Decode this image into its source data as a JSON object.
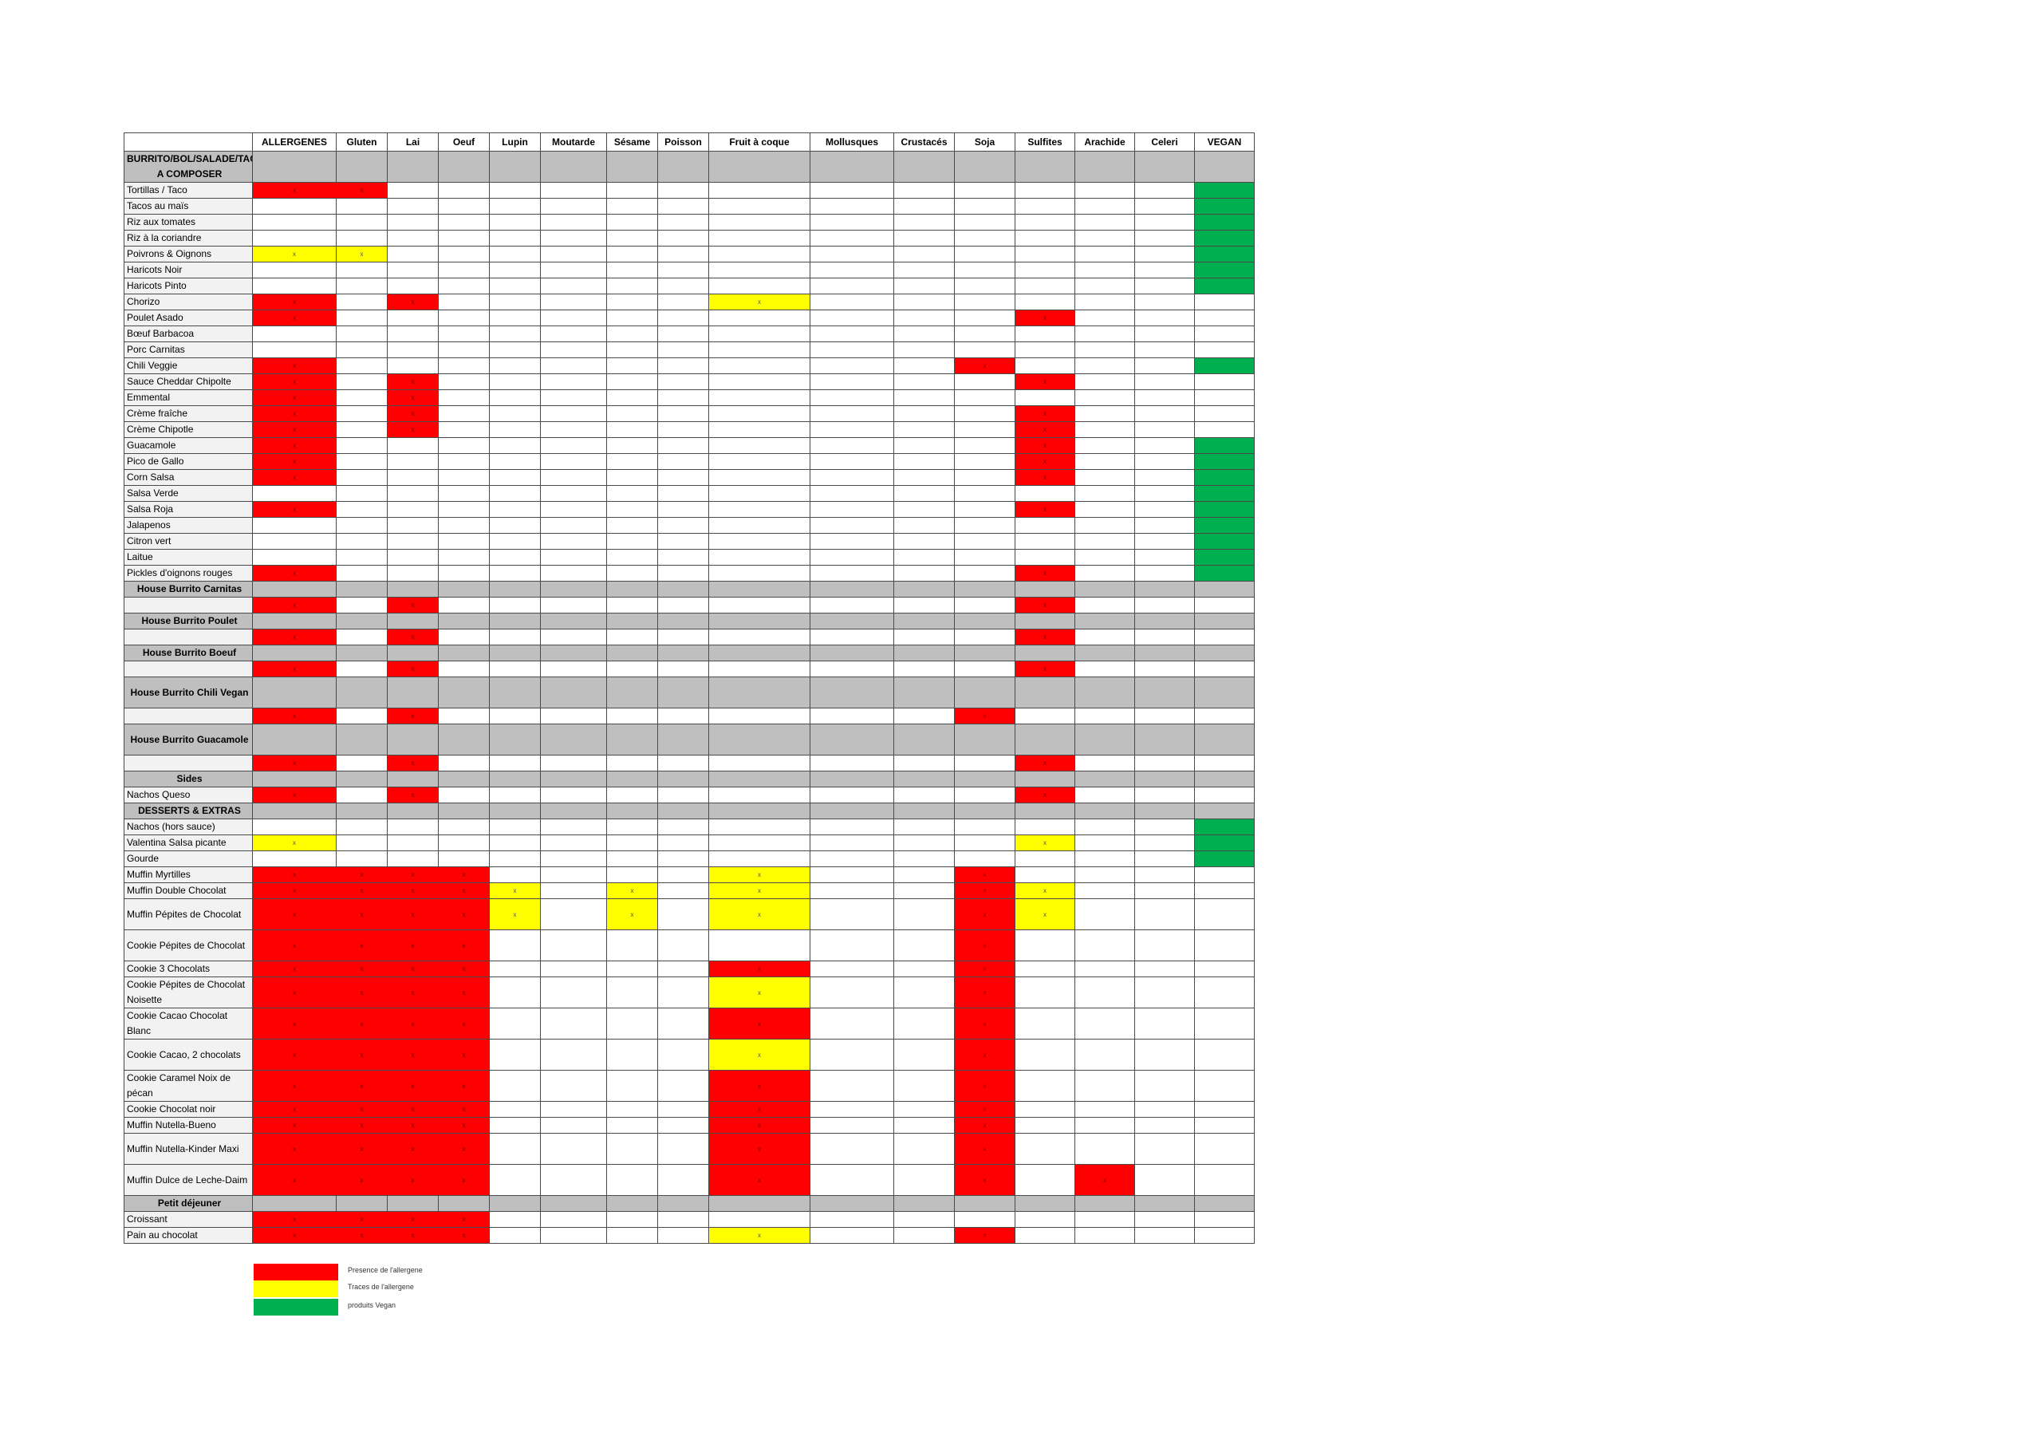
{
  "headers": [
    "",
    "ALLERGENES",
    "Gluten",
    "Lai",
    "Oeuf",
    "Lupin",
    "Moutarde",
    "Sésame",
    "Poisson",
    "Fruit à coque",
    "Mollusques",
    "Crustacés",
    "Soja",
    "Sulfites",
    "Arachide",
    "Celeri",
    "VEGAN"
  ],
  "mark": "x",
  "colors": {
    "presence": "#ff0000",
    "traces": "#ffff00",
    "vegan": "#00b050",
    "section": "#bfbfbf"
  },
  "rows": [
    {
      "kind": "section",
      "name": "BURRITO/BOL/SALADE/TACOS A COMPOSER",
      "tall": true,
      "align": "center",
      "cells": {}
    },
    {
      "kind": "item",
      "name": "Tortillas / Taco",
      "cells": {
        "1": "r",
        "2": "r",
        "16": "g"
      }
    },
    {
      "kind": "item",
      "name": "Tacos au maïs",
      "cells": {
        "16": "g"
      }
    },
    {
      "kind": "item",
      "name": "Riz aux tomates",
      "cells": {
        "16": "g"
      }
    },
    {
      "kind": "item",
      "name": "Riz à la coriandre",
      "cells": {
        "16": "g"
      }
    },
    {
      "kind": "item",
      "name": "Poivrons & Oignons",
      "cells": {
        "1": "y",
        "2": "y",
        "16": "g"
      }
    },
    {
      "kind": "item",
      "name": "Haricots Noir",
      "cells": {
        "16": "g"
      }
    },
    {
      "kind": "item",
      "name": "Haricots Pinto",
      "cells": {
        "16": "g"
      }
    },
    {
      "kind": "item",
      "name": "Chorizo",
      "cells": {
        "1": "r",
        "3": "r",
        "9": "y"
      }
    },
    {
      "kind": "item",
      "name": "Poulet Asado",
      "cells": {
        "1": "r",
        "13": "r"
      }
    },
    {
      "kind": "item",
      "name": "Bœuf Barbacoa",
      "cells": {}
    },
    {
      "kind": "item",
      "name": "Porc Carnitas",
      "cells": {}
    },
    {
      "kind": "item",
      "name": "Chili Veggie",
      "cells": {
        "1": "r",
        "12": "r",
        "16": "g"
      }
    },
    {
      "kind": "item",
      "name": "Sauce Cheddar Chipolte",
      "cells": {
        "1": "r",
        "3": "r",
        "13": "r"
      }
    },
    {
      "kind": "item",
      "name": "Emmental",
      "cells": {
        "1": "r",
        "3": "r"
      }
    },
    {
      "kind": "item",
      "name": "Crème fraîche",
      "cells": {
        "1": "r",
        "3": "r",
        "13": "r"
      }
    },
    {
      "kind": "item",
      "name": "Crème Chipotle",
      "cells": {
        "1": "r",
        "3": "r",
        "13": "r"
      }
    },
    {
      "kind": "item",
      "name": "Guacamole",
      "cells": {
        "1": "r",
        "13": "r",
        "16": "g"
      }
    },
    {
      "kind": "item",
      "name": "Pico de Gallo",
      "cells": {
        "1": "r",
        "13": "r",
        "16": "g"
      }
    },
    {
      "kind": "item",
      "name": "Corn Salsa",
      "cells": {
        "1": "r",
        "13": "r",
        "16": "g"
      }
    },
    {
      "kind": "item",
      "name": "Salsa Verde",
      "cells": {
        "16": "g"
      }
    },
    {
      "kind": "item",
      "name": "Salsa Roja",
      "cells": {
        "1": "r",
        "13": "r",
        "16": "g"
      }
    },
    {
      "kind": "item",
      "name": "Jalapenos",
      "cells": {
        "16": "g"
      }
    },
    {
      "kind": "item",
      "name": "Citron vert",
      "cells": {
        "16": "g"
      }
    },
    {
      "kind": "item",
      "name": "Laitue",
      "cells": {
        "16": "g"
      }
    },
    {
      "kind": "item",
      "name": "Pickles d'oignons rouges",
      "cells": {
        "1": "r",
        "13": "r",
        "16": "g"
      }
    },
    {
      "kind": "section",
      "name": "House Burrito Carnitas",
      "cells": {}
    },
    {
      "kind": "blank",
      "name": "",
      "cells": {
        "1": "r",
        "3": "r",
        "13": "r"
      }
    },
    {
      "kind": "section",
      "name": "House Burrito Poulet",
      "cells": {}
    },
    {
      "kind": "blank",
      "name": "",
      "cells": {
        "1": "r",
        "3": "r",
        "13": "r"
      }
    },
    {
      "kind": "section",
      "name": "House Burrito Boeuf",
      "cells": {}
    },
    {
      "kind": "blank",
      "name": "",
      "cells": {
        "1": "r",
        "3": "r",
        "13": "r"
      }
    },
    {
      "kind": "section",
      "name": "House Burrito Chili Vegan",
      "tall": true,
      "cells": {}
    },
    {
      "kind": "blank",
      "name": "",
      "cells": {
        "1": "r",
        "3": "r",
        "12": "r"
      }
    },
    {
      "kind": "section",
      "name": "House Burrito Guacamole",
      "tall": true,
      "cells": {}
    },
    {
      "kind": "blank",
      "name": "",
      "cells": {
        "1": "r",
        "3": "r",
        "13": "r"
      }
    },
    {
      "kind": "section",
      "name": "Sides",
      "cells": {}
    },
    {
      "kind": "item",
      "name": "Nachos Queso",
      "cells": {
        "1": "r",
        "3": "r",
        "13": "r"
      }
    },
    {
      "kind": "section",
      "name": "DESSERTS & EXTRAS",
      "cells": {}
    },
    {
      "kind": "item",
      "name": "Nachos (hors sauce)",
      "cells": {
        "16": "g"
      }
    },
    {
      "kind": "item",
      "name": "Valentina Salsa picante",
      "cells": {
        "1": "y",
        "13": "y",
        "16": "g"
      }
    },
    {
      "kind": "item",
      "name": "Gourde",
      "cells": {
        "16": "g"
      }
    },
    {
      "kind": "item",
      "name": "Muffin Myrtilles",
      "cells": {
        "1": "r",
        "2": "r",
        "3": "r",
        "4": "r",
        "9": "y",
        "12": "r"
      }
    },
    {
      "kind": "item",
      "name": "Muffin Double Chocolat",
      "cells": {
        "1": "r",
        "2": "r",
        "3": "r",
        "4": "r",
        "5": "y",
        "7": "y",
        "9": "y",
        "12": "r",
        "13": "y"
      }
    },
    {
      "kind": "item",
      "name": "Muffin Pépites de Chocolat",
      "tall": true,
      "cells": {
        "1": "r",
        "2": "r",
        "3": "r",
        "4": "r",
        "5": "y",
        "7": "y",
        "9": "y",
        "12": "r",
        "13": "y"
      }
    },
    {
      "kind": "item",
      "name": "Cookie Pépites de Chocolat",
      "tall": true,
      "cells": {
        "1": "r",
        "2": "r",
        "3": "r",
        "4": "r",
        "12": "r"
      }
    },
    {
      "kind": "item",
      "name": "Cookie 3 Chocolats",
      "cells": {
        "1": "r",
        "2": "r",
        "3": "r",
        "4": "r",
        "9": "r",
        "12": "r"
      }
    },
    {
      "kind": "item",
      "name": "Cookie Pépites de Chocolat Noisette",
      "tall": true,
      "cells": {
        "1": "r",
        "2": "r",
        "3": "r",
        "4": "r",
        "9": "y",
        "12": "r"
      }
    },
    {
      "kind": "item",
      "name": "Cookie Cacao Chocolat Blanc",
      "tall": true,
      "cells": {
        "1": "r",
        "2": "r",
        "3": "r",
        "4": "r",
        "9": "r",
        "12": "r"
      }
    },
    {
      "kind": "item",
      "name": "Cookie Cacao, 2 chocolats",
      "tall": true,
      "cells": {
        "1": "r",
        "2": "r",
        "3": "r",
        "4": "r",
        "9": "y",
        "12": "r"
      }
    },
    {
      "kind": "item",
      "name": "Cookie Caramel Noix de pécan",
      "tall": true,
      "cells": {
        "1": "r",
        "2": "r",
        "3": "r",
        "4": "r",
        "9": "r",
        "12": "r"
      }
    },
    {
      "kind": "item",
      "name": "Cookie Chocolat noir",
      "cells": {
        "1": "r",
        "2": "r",
        "3": "r",
        "4": "r",
        "9": "r",
        "12": "r"
      }
    },
    {
      "kind": "item",
      "name": "Muffin Nutella-Bueno",
      "cells": {
        "1": "r",
        "2": "r",
        "3": "r",
        "4": "r",
        "9": "r",
        "12": "r"
      }
    },
    {
      "kind": "item",
      "name": "Muffin Nutella-Kinder Maxi",
      "tall": true,
      "cells": {
        "1": "r",
        "2": "r",
        "3": "r",
        "4": "r",
        "9": "r",
        "12": "r"
      }
    },
    {
      "kind": "item",
      "name": "Muffin Dulce de Leche-Daim",
      "tall": true,
      "cells": {
        "1": "r",
        "2": "r",
        "3": "r",
        "4": "r",
        "9": "r",
        "12": "r",
        "14": "r"
      }
    },
    {
      "kind": "section",
      "name": "Petit déjeuner",
      "cells": {}
    },
    {
      "kind": "item",
      "name": "Croissant",
      "cells": {
        "1": "r",
        "2": "r",
        "3": "r",
        "4": "r"
      }
    },
    {
      "kind": "item",
      "name": "Pain au chocolat",
      "cells": {
        "1": "r",
        "2": "r",
        "3": "r",
        "4": "r",
        "9": "y",
        "12": "r"
      }
    }
  ],
  "legend": {
    "presence": "Presence de l'allergene",
    "traces": "Traces de l'allergene",
    "vegan": "produits Vegan"
  }
}
